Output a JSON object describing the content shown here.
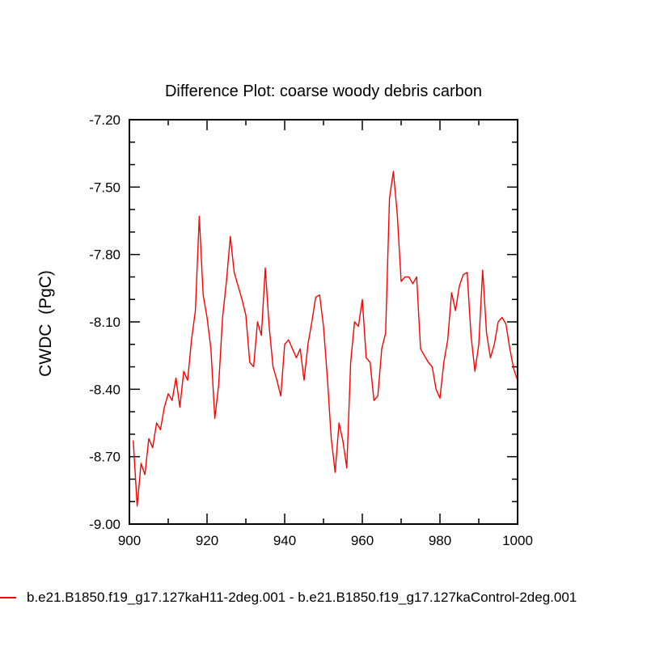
{
  "chart_data": {
    "type": "line",
    "title": "Difference Plot: coarse woody debris carbon",
    "xlabel": "",
    "ylabel": "CWDC  (PgC)",
    "xlim": [
      900,
      1000
    ],
    "ylim": [
      -9.0,
      -7.2
    ],
    "grid": false,
    "frame_color": "#000000",
    "xticks": {
      "major": [
        900,
        920,
        940,
        960,
        980,
        1000
      ],
      "labels": [
        "900",
        "920",
        "940",
        "960",
        "980",
        "1000"
      ],
      "minor": [
        910,
        930,
        950,
        970,
        990
      ]
    },
    "yticks": {
      "major": [
        -7.2,
        -7.5,
        -7.8,
        -8.1,
        -8.4,
        -8.7,
        -9.0
      ],
      "labels": [
        "-7.20",
        "-7.50",
        "-7.80",
        "-8.10",
        "-8.40",
        "-8.70",
        "-9.00"
      ],
      "minor": [
        -7.3,
        -7.4,
        -7.6,
        -7.7,
        -7.9,
        -8.0,
        -8.2,
        -8.3,
        -8.5,
        -8.6,
        -8.8,
        -8.9
      ]
    },
    "series": [
      {
        "name": "difference",
        "color": "#fd0000",
        "x": [
          901,
          902,
          903,
          904,
          905,
          906,
          907,
          908,
          909,
          910,
          911,
          912,
          913,
          914,
          915,
          916,
          917,
          918,
          919,
          920,
          921,
          922,
          923,
          924,
          925,
          926,
          927,
          928,
          929,
          930,
          931,
          932,
          933,
          934,
          935,
          936,
          937,
          938,
          939,
          940,
          941,
          942,
          943,
          944,
          945,
          946,
          947,
          948,
          949,
          950,
          951,
          952,
          953,
          954,
          955,
          956,
          957,
          958,
          959,
          960,
          961,
          962,
          963,
          964,
          965,
          966,
          967,
          968,
          969,
          970,
          971,
          972,
          973,
          974,
          975,
          976,
          977,
          978,
          979,
          980,
          981,
          982,
          983,
          984,
          985,
          986,
          987,
          988,
          989,
          990,
          991,
          992,
          993,
          994,
          995,
          996,
          997,
          998,
          999,
          1000
        ],
        "y": [
          -8.63,
          -8.92,
          -8.73,
          -8.78,
          -8.62,
          -8.66,
          -8.55,
          -8.58,
          -8.48,
          -8.42,
          -8.45,
          -8.35,
          -8.48,
          -8.32,
          -8.36,
          -8.18,
          -8.05,
          -7.63,
          -7.98,
          -8.08,
          -8.22,
          -8.53,
          -8.38,
          -8.08,
          -7.92,
          -7.72,
          -7.88,
          -7.94,
          -8.0,
          -8.07,
          -8.28,
          -8.3,
          -8.1,
          -8.16,
          -7.86,
          -8.12,
          -8.3,
          -8.36,
          -8.43,
          -8.2,
          -8.18,
          -8.22,
          -8.26,
          -8.22,
          -8.36,
          -8.2,
          -8.1,
          -7.99,
          -7.98,
          -8.12,
          -8.35,
          -8.62,
          -8.77,
          -8.55,
          -8.63,
          -8.75,
          -8.28,
          -8.1,
          -8.12,
          -8.0,
          -8.26,
          -8.28,
          -8.45,
          -8.43,
          -8.22,
          -8.15,
          -7.55,
          -7.43,
          -7.62,
          -7.92,
          -7.9,
          -7.9,
          -7.93,
          -7.9,
          -8.22,
          -8.25,
          -8.28,
          -8.3,
          -8.4,
          -8.44,
          -8.28,
          -8.18,
          -7.97,
          -8.05,
          -7.94,
          -7.89,
          -7.88,
          -8.16,
          -8.32,
          -8.2,
          -7.87,
          -8.15,
          -8.26,
          -8.2,
          -8.1,
          -8.08,
          -8.11,
          -8.22,
          -8.31,
          -8.36
        ]
      }
    ],
    "legend": {
      "position": "bottom-left",
      "label": "b.e21.B1850.f19_g17.127kaH11-2deg.001 - b.e21.B1850.f19_g17.127kaControl-2deg.001"
    }
  }
}
